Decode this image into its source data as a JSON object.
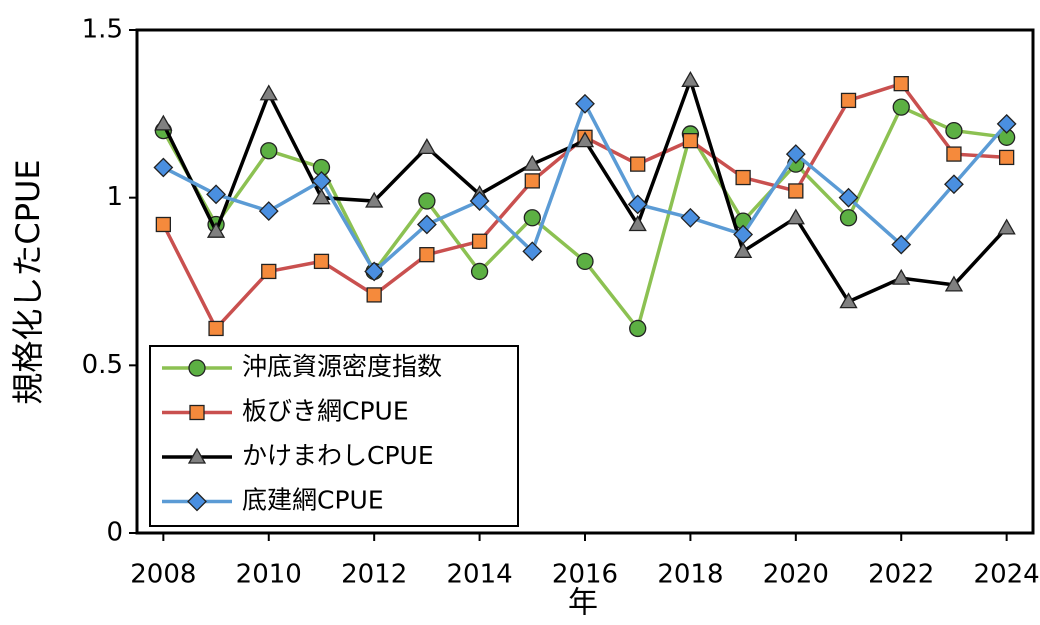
{
  "chart_data": {
    "type": "line",
    "x_label": "年",
    "y_label": "規格化したCPUE",
    "x": [
      2008,
      2009,
      2010,
      2011,
      2012,
      2013,
      2014,
      2015,
      2016,
      2017,
      2018,
      2019,
      2020,
      2021,
      2022,
      2023,
      2024
    ],
    "xlim": [
      2007.5,
      2024.5
    ],
    "xticks": [
      2008,
      2010,
      2012,
      2014,
      2016,
      2018,
      2020,
      2022,
      2024
    ],
    "ylim": [
      0,
      1.5
    ],
    "yticks": [
      0,
      0.5,
      1,
      1.5
    ],
    "grid": false,
    "legend": "lower left",
    "series": [
      {
        "name": "沖底資源密度指数",
        "color": "#8cc152",
        "marker": "circle",
        "marker_color": "#5cb043",
        "values": [
          1.2,
          0.92,
          1.14,
          1.09,
          0.78,
          0.99,
          0.78,
          0.94,
          0.81,
          0.61,
          1.19,
          0.93,
          1.1,
          0.94,
          1.27,
          1.2,
          1.18
        ]
      },
      {
        "name": "板びき網CPUE",
        "color": "#c9504f",
        "marker": "square",
        "marker_color": "#f58a3c",
        "values": [
          0.92,
          0.61,
          0.78,
          0.81,
          0.71,
          0.83,
          0.87,
          1.05,
          1.18,
          1.1,
          1.17,
          1.06,
          1.02,
          1.29,
          1.34,
          1.13,
          1.12
        ]
      },
      {
        "name": "かけまわしCPUE",
        "color": "#000000",
        "marker": "triangle",
        "marker_color": "#808080",
        "values": [
          1.22,
          0.9,
          1.31,
          1.0,
          0.99,
          1.15,
          1.01,
          1.1,
          1.17,
          0.92,
          1.35,
          0.84,
          0.94,
          0.69,
          0.76,
          0.74,
          0.91
        ]
      },
      {
        "name": "底建網CPUE",
        "color": "#5b9bd5",
        "marker": "diamond",
        "marker_color": "#4a8fe0",
        "values": [
          1.09,
          1.01,
          0.96,
          1.05,
          0.78,
          0.92,
          0.99,
          0.84,
          1.28,
          0.98,
          0.94,
          0.89,
          1.13,
          1.0,
          0.86,
          1.04,
          1.22
        ]
      }
    ]
  }
}
